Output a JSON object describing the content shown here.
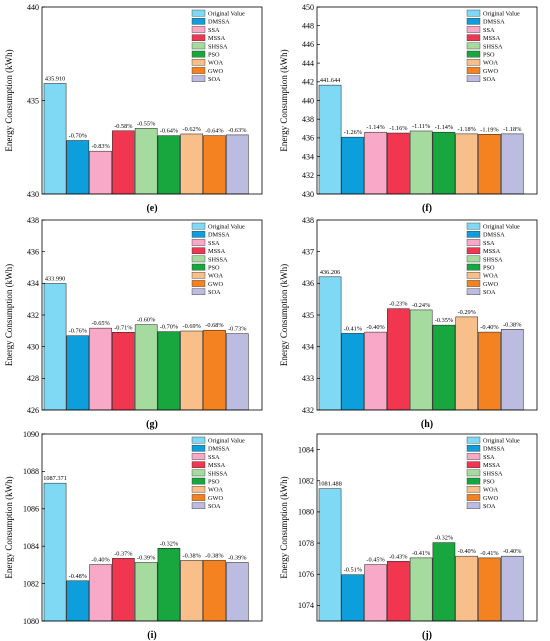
{
  "legend_items": [
    "Original Value",
    "DMSSA",
    "SSA",
    "MSSA",
    "SHSSA",
    "PSO",
    "WOA",
    "GWO",
    "SOA"
  ],
  "colors": [
    "#7fd9f5",
    "#0d9fdc",
    "#f9a9c8",
    "#f0374f",
    "#a6dba0",
    "#18a63f",
    "#f9bf8a",
    "#f58220",
    "#bcbbe0"
  ],
  "chart_data": [
    {
      "type": "bar",
      "panel_label": "(e)",
      "ylabel": "Energy Consumption (kWh)",
      "categories": [
        "Original Value",
        "DMSSA",
        "SSA",
        "MSSA",
        "SHSSA",
        "PSO",
        "WOA",
        "GWO",
        "SOA"
      ],
      "values": [
        435.91,
        432.86,
        432.29,
        433.38,
        433.51,
        433.12,
        433.21,
        433.12,
        433.16
      ],
      "labels": [
        "435.910",
        "-0.70%",
        "-0.83%",
        "-0.58%",
        "-0.55%",
        "-0.64%",
        "-0.62%",
        "-0.64%",
        "-0.63%"
      ],
      "ylim": [
        430,
        440
      ],
      "yticks": [
        430,
        435,
        440
      ],
      "legend": "top-right"
    },
    {
      "type": "bar",
      "panel_label": "(f)",
      "ylabel": "Energy Consumption (kWh)",
      "categories": [
        "Original Value",
        "DMSSA",
        "SSA",
        "MSSA",
        "SHSSA",
        "PSO",
        "WOA",
        "GWO",
        "SOA"
      ],
      "values": [
        441.644,
        436.08,
        436.61,
        436.52,
        436.74,
        436.61,
        436.43,
        436.39,
        436.43
      ],
      "labels": [
        "441.644",
        "-1.26%",
        "-1.14%",
        "-1.16%",
        "-1.11%",
        "-1.14%",
        "-1.18%",
        "-1.19%",
        "-1.18%"
      ],
      "ylim": [
        430,
        450
      ],
      "yticks": [
        430,
        432,
        434,
        436,
        438,
        440,
        442,
        444,
        446,
        448,
        450
      ],
      "legend": "top-right"
    },
    {
      "type": "bar",
      "panel_label": "(g)",
      "ylabel": "Energy Consumption (kWh)",
      "categories": [
        "Original Value",
        "DMSSA",
        "SSA",
        "MSSA",
        "SHSSA",
        "PSO",
        "WOA",
        "GWO",
        "SOA"
      ],
      "values": [
        433.99,
        430.69,
        431.17,
        430.91,
        431.39,
        430.95,
        430.99,
        431.04,
        430.82
      ],
      "labels": [
        "433.990",
        "-0.76%",
        "-0.65%",
        "-0.71%",
        "-0.60%",
        "-0.70%",
        "-0.69%",
        "-0.68%",
        "-0.73%"
      ],
      "ylim": [
        426,
        438
      ],
      "yticks": [
        426,
        428,
        430,
        432,
        434,
        436,
        438
      ],
      "legend": "top-right"
    },
    {
      "type": "bar",
      "panel_label": "(h)",
      "ylabel": "Energy Consumption (kWh)",
      "categories": [
        "Original Value",
        "DMSSA",
        "SSA",
        "MSSA",
        "SHSSA",
        "PSO",
        "WOA",
        "GWO",
        "SOA"
      ],
      "values": [
        436.206,
        434.42,
        434.46,
        435.2,
        435.16,
        434.68,
        434.94,
        434.46,
        434.55
      ],
      "labels": [
        "436.206",
        "-0.41%",
        "-0.40%",
        "-0.23%",
        "-0.24%",
        "-0.35%",
        "-0.29%",
        "-0.40%",
        "-0.38%"
      ],
      "ylim": [
        432,
        438
      ],
      "yticks": [
        432,
        433,
        434,
        435,
        436,
        437,
        438
      ],
      "legend": "top-right"
    },
    {
      "type": "bar",
      "panel_label": "(i)",
      "ylabel": "Energy Consumption (kWh)",
      "categories": [
        "Original Value",
        "DMSSA",
        "SSA",
        "MSSA",
        "SHSSA",
        "PSO",
        "WOA",
        "GWO",
        "SOA"
      ],
      "values": [
        1087.371,
        1082.15,
        1083.02,
        1083.35,
        1083.13,
        1083.89,
        1083.24,
        1083.24,
        1083.13
      ],
      "labels": [
        "1087.371",
        "-0.48%",
        "-0.40%",
        "-0.37%",
        "-0.39%",
        "-0.32%",
        "-0.38%",
        "-0.38%",
        "-0.39%"
      ],
      "ylim": [
        1080,
        1090
      ],
      "yticks": [
        1080,
        1082,
        1084,
        1086,
        1088,
        1090
      ],
      "legend": "top-right"
    },
    {
      "type": "bar",
      "panel_label": "(j)",
      "ylabel": "Energy Consumption (kWh)",
      "categories": [
        "Original Value",
        "DMSSA",
        "SSA",
        "MSSA",
        "SHSSA",
        "PSO",
        "WOA",
        "GWO",
        "SOA"
      ],
      "values": [
        1081.488,
        1075.97,
        1076.62,
        1076.83,
        1077.05,
        1078.03,
        1077.16,
        1077.05,
        1077.16
      ],
      "labels": [
        "1081.488",
        "-0.51%",
        "-0.45%",
        "-0.43%",
        "-0.41%",
        "-0.32%",
        "-0.40%",
        "-0.41%",
        "-0.40%"
      ],
      "ylim": [
        1073,
        1085
      ],
      "yticks": [
        1074,
        1076,
        1078,
        1080,
        1082,
        1084
      ],
      "legend": "top-right"
    }
  ]
}
